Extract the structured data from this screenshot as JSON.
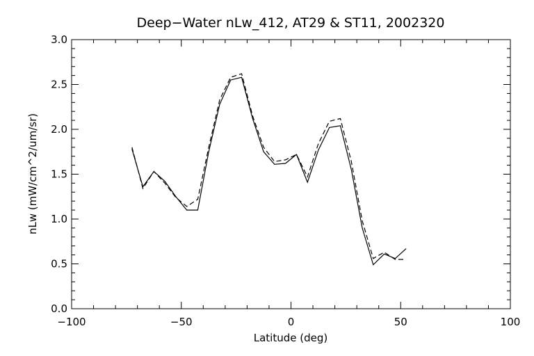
{
  "chart_data": {
    "type": "line",
    "title": "Deep−Water nLw_412, AT29 & ST11, 2002320",
    "xlabel": "Latitude (deg)",
    "ylabel": "nLw (mW/cm^2/um/sr)",
    "xlim": [
      -100,
      100
    ],
    "ylim": [
      0.0,
      3.0
    ],
    "xticks": [
      -100,
      -50,
      0,
      50,
      100
    ],
    "xtick_labels": [
      "−100",
      "−50",
      "0",
      "50",
      "100"
    ],
    "yticks": [
      0.0,
      0.5,
      1.0,
      1.5,
      2.0,
      2.5,
      3.0
    ],
    "ytick_labels": [
      "0.0",
      "0.5",
      "1.0",
      "1.5",
      "2.0",
      "2.5",
      "3.0"
    ],
    "grid": false,
    "series": [
      {
        "style": "solid",
        "color": "#000000",
        "x": [
          -72.5,
          -67.5,
          -62.5,
          -57.5,
          -52.5,
          -47.5,
          -42.5,
          -37.5,
          -32.5,
          -27.5,
          -22.5,
          -17.5,
          -12.5,
          -7.5,
          -2.5,
          2.5,
          7.5,
          12.5,
          17.5,
          22.5,
          27.5,
          32.5,
          37.5,
          42.5,
          47.5,
          52.5
        ],
        "values": [
          1.78,
          1.36,
          1.53,
          1.42,
          1.25,
          1.1,
          1.1,
          1.75,
          2.28,
          2.55,
          2.58,
          2.12,
          1.75,
          1.61,
          1.62,
          1.72,
          1.41,
          1.77,
          2.02,
          2.04,
          1.55,
          0.9,
          0.49,
          0.61,
          0.56,
          0.67
        ]
      },
      {
        "style": "dashed",
        "color": "#000000",
        "x": [
          -72.5,
          -67.5,
          -62.5,
          -57.5,
          -52.5,
          -47.5,
          -42.5,
          -37.5,
          -32.5,
          -27.5,
          -22.5,
          -17.5,
          -12.5,
          -7.5,
          -2.5,
          2.5,
          7.5,
          12.5,
          17.5,
          22.5,
          27.5,
          32.5,
          37.5,
          42.5,
          47.5,
          52.5
        ],
        "values": [
          1.8,
          1.34,
          1.53,
          1.4,
          1.24,
          1.14,
          1.22,
          1.8,
          2.33,
          2.58,
          2.62,
          2.15,
          1.8,
          1.64,
          1.66,
          1.72,
          1.47,
          1.84,
          2.09,
          2.12,
          1.64,
          0.98,
          0.56,
          0.63,
          0.55,
          0.55
        ]
      }
    ]
  }
}
